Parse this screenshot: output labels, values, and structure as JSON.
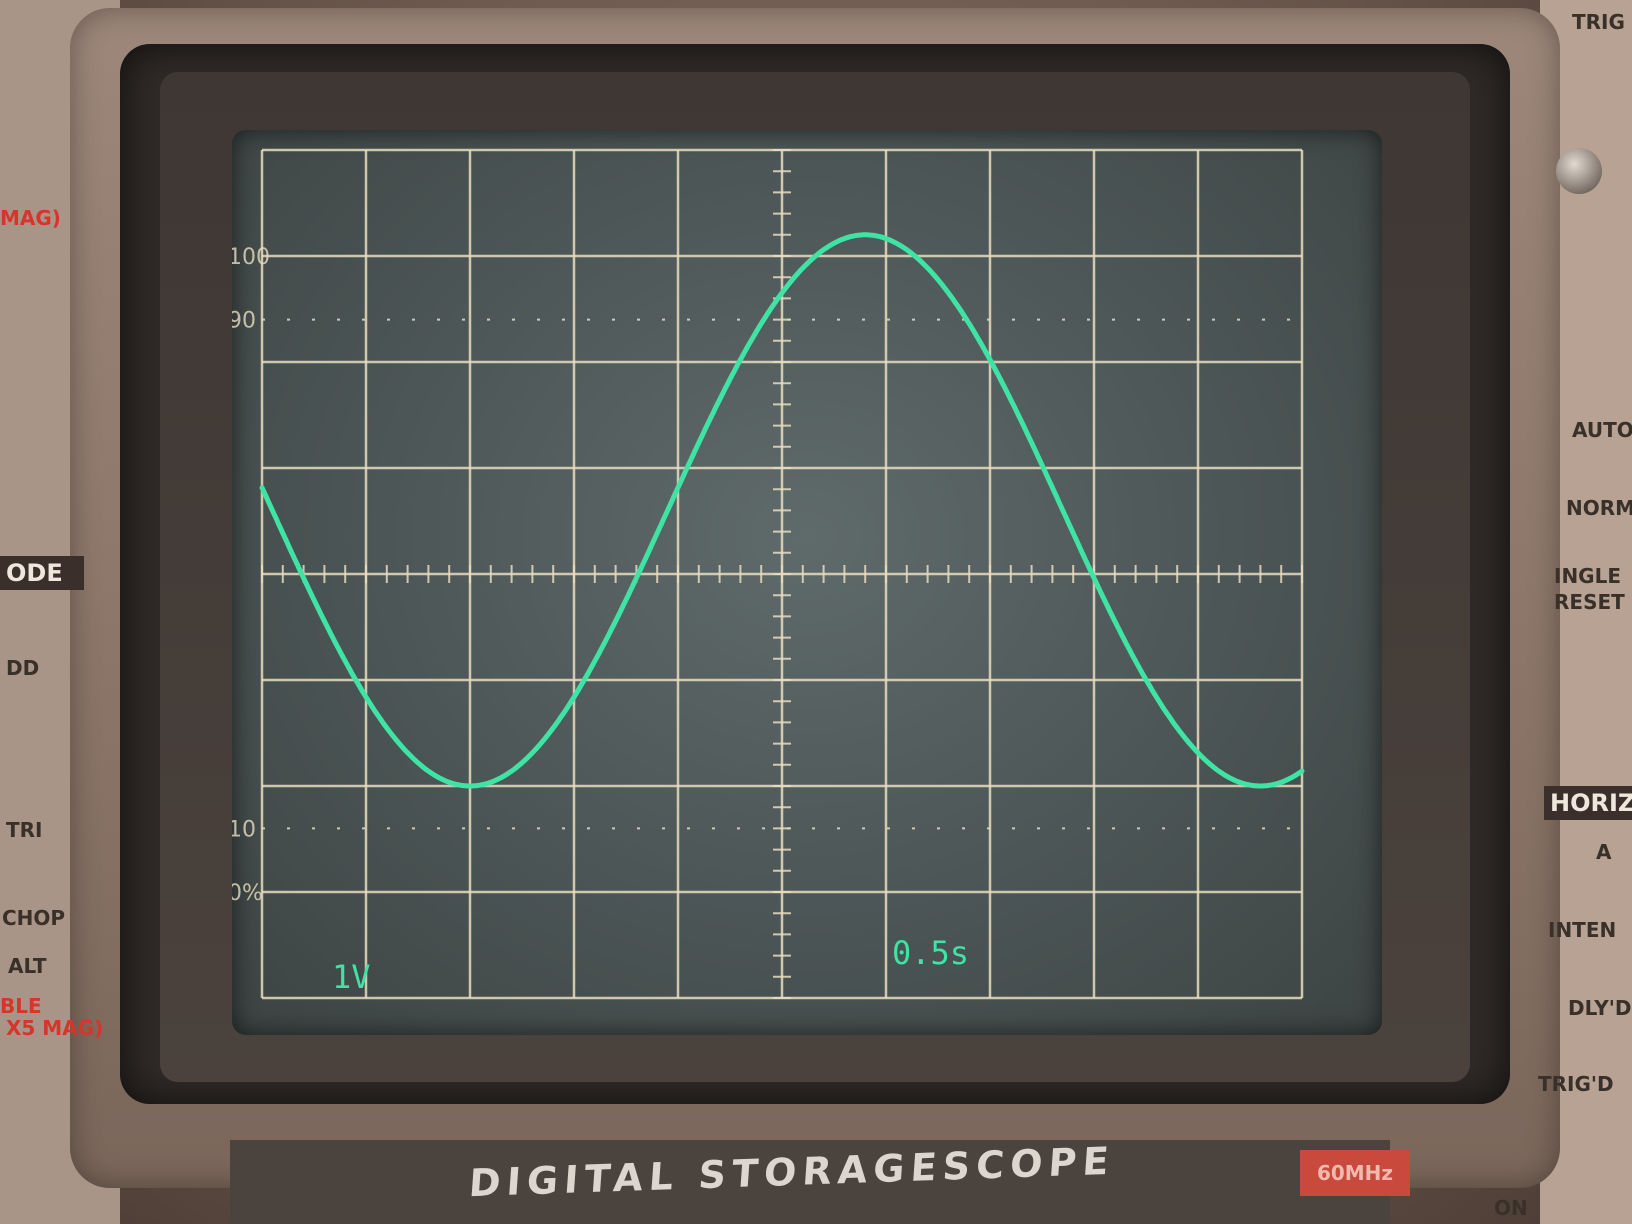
{
  "screen": {
    "volts_per_div": "1V",
    "time_per_div": "0.5s",
    "graticule_labels": [
      "100",
      "90",
      "10",
      "0%"
    ]
  },
  "trace": {
    "color": "#3fe3a4",
    "waveform": "sine",
    "amplitude_divisions": 2.6,
    "offset_divisions": 0.6,
    "period_divisions": 7.6,
    "phase_shift_divisions": 2.0
  },
  "panel": {
    "left_labels": [
      "MAG)",
      "ODE",
      "DD",
      "TRI",
      "CHOP",
      "ALT",
      "BLE",
      "X5 MAG)"
    ],
    "right_labels": [
      "TRIG",
      "AUTO",
      "NORM",
      "INGLE",
      "RESET",
      "HORIZ",
      "A",
      "INTEN",
      "DLY'D",
      "TRIG'D",
      "ON"
    ]
  },
  "brand": {
    "text": "DIGITAL STORAGESCOPE",
    "badge": "60MHz"
  },
  "colors": {
    "trace": "#3fe3a4",
    "graticule": "#e8dcc0",
    "screen": "#4f5858",
    "label_red": "#d7352c"
  }
}
